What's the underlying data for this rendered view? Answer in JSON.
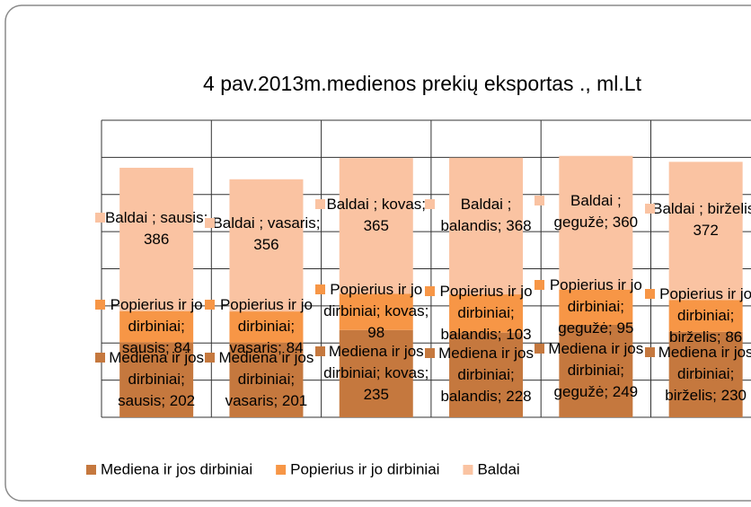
{
  "chart_data": {
    "type": "stacked_bar",
    "title": "4 pav.2013m.medienos prekių eksportas ., ml.Lt",
    "categories": [
      "sausis",
      "vasaris",
      "kovas",
      "balandis",
      "gegužė",
      "birželis"
    ],
    "series": [
      {
        "name": "Mediena ir jos dirbiniai",
        "color": "#c5783e",
        "values": [
          202,
          201,
          235,
          228,
          249,
          230
        ],
        "value_labels": [
          "Mediena ir jos dirbiniai; sausis; 202",
          "Mediena ir jos dirbiniai; vasaris; 201",
          "Mediena ir jos dirbiniai; kovas; 235",
          "Mediena ir jos dirbiniai; balandis; 228",
          "Mediena ir jos dirbiniai; gegužė; 249",
          "Mediena ir jos dirbiniai; birželis; 230"
        ]
      },
      {
        "name": "Popierius ir jo dirbiniai",
        "color": "#f79646",
        "values": [
          84,
          84,
          98,
          103,
          95,
          86
        ],
        "value_labels": [
          "Popierius ir jo dirbiniai; sausis; 84",
          "Popierius ir jo dirbiniai; vasaris; 84",
          "Popierius ir jo dirbiniai; kovas; 98",
          "Popierius ir jo dirbiniai; balandis; 103",
          "Popierius ir jo dirbiniai; gegužė; 95",
          "Popierius ir jo dirbiniai; birželis; 86"
        ]
      },
      {
        "name": "Baldai",
        "color": "#fac3a2",
        "values": [
          386,
          356,
          365,
          368,
          360,
          372
        ],
        "value_labels": [
          "Baldai ; sausis; 386",
          "Baldai ; vasaris; 356",
          "Baldai ; kovas; 365",
          "Baldai ; balandis; 368",
          "Baldai ; gegužė; 360",
          "Baldai ; birželis; 372"
        ]
      }
    ],
    "ylim": [
      0,
      800
    ],
    "yticks": [
      0,
      100,
      200,
      300,
      400,
      500,
      600,
      700,
      800
    ],
    "tick_labels": false,
    "grid": true,
    "legend": "bottom"
  }
}
